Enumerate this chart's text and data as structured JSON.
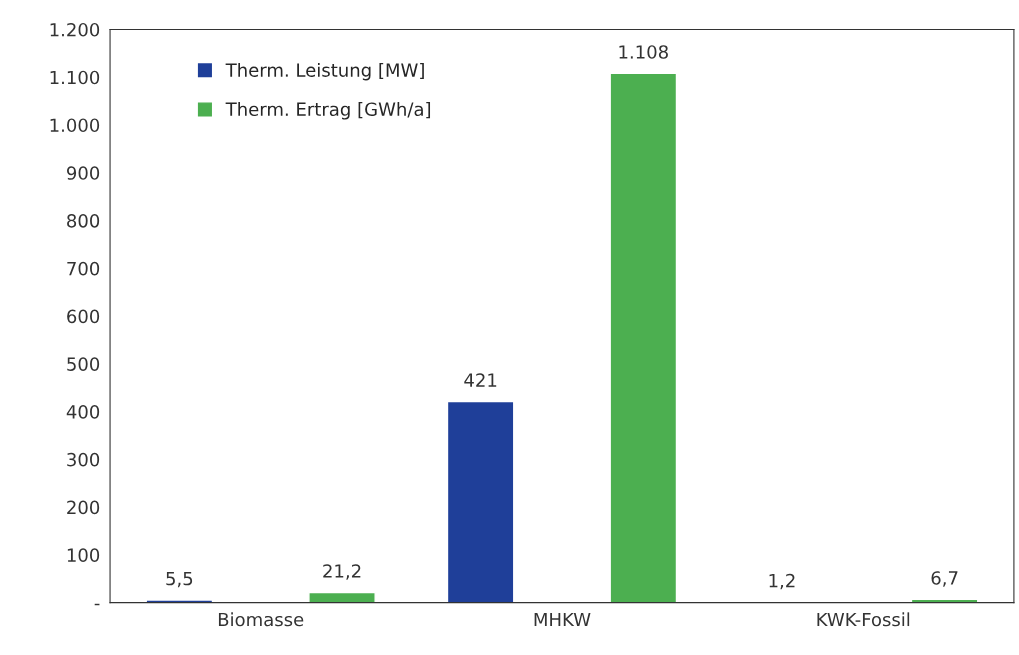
{
  "chart_data": {
    "type": "bar",
    "categories": [
      "Biomasse",
      "MHKW",
      "KWK-Fossil"
    ],
    "series": [
      {
        "name": "Therm. Leistung [MW]",
        "color": "#1f3f99",
        "values": [
          5.5,
          421,
          1.2
        ],
        "value_labels": [
          "5,5",
          "421",
          "1,2"
        ]
      },
      {
        "name": "Therm. Ertrag [GWh/a]",
        "color": "#4caf50",
        "values": [
          21.2,
          1108,
          6.7
        ],
        "value_labels": [
          "21,2",
          "1.108",
          "6,7"
        ]
      }
    ],
    "ylim": [
      0,
      1200
    ],
    "yticks": [
      {
        "value": 0,
        "label": "-"
      },
      100,
      200,
      300,
      400,
      500,
      600,
      700,
      800,
      900,
      {
        "value": 1000,
        "label": "1.000"
      },
      {
        "value": 1100,
        "label": "1.100"
      },
      {
        "value": 1200,
        "label": "1.200"
      }
    ],
    "grid": false,
    "legend": "top left"
  }
}
